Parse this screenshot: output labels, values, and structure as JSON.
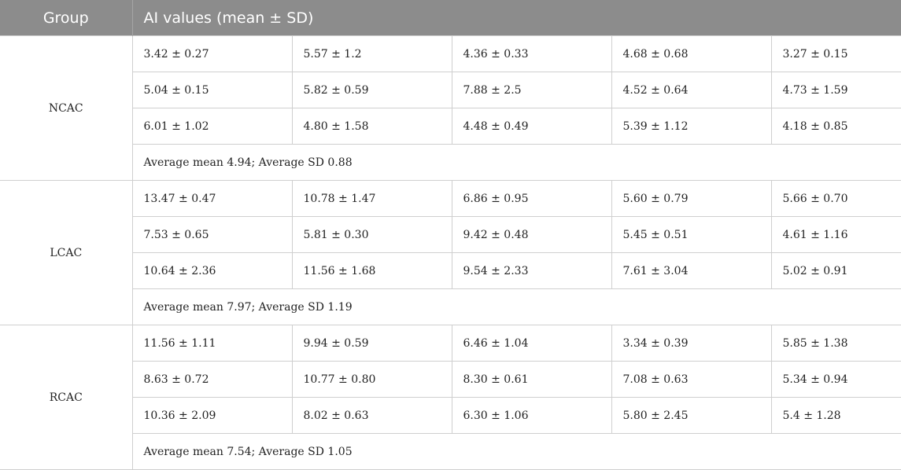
{
  "table": {
    "headers": {
      "group": "Group",
      "values": "AI values (mean ± SD)"
    },
    "groups": [
      {
        "name": "NCAC",
        "rows": [
          [
            "3.42 ± 0.27",
            "5.57 ± 1.2",
            "4.36 ± 0.33",
            "4.68 ± 0.68",
            "3.27 ± 0.15"
          ],
          [
            "5.04 ± 0.15",
            "5.82 ± 0.59",
            "7.88 ± 2.5",
            "4.52 ± 0.64",
            "4.73 ± 1.59"
          ],
          [
            "6.01 ± 1.02",
            "4.80 ± 1.58",
            "4.48 ± 0.49",
            "5.39 ± 1.12",
            "4.18 ± 0.85"
          ]
        ],
        "summary": "Average mean 4.94; Average SD 0.88"
      },
      {
        "name": "LCAC",
        "rows": [
          [
            "13.47 ± 0.47",
            "10.78 ± 1.47",
            "6.86 ± 0.95",
            "5.60 ± 0.79",
            "5.66 ± 0.70"
          ],
          [
            "7.53 ± 0.65",
            "5.81 ± 0.30",
            "9.42 ± 0.48",
            "5.45 ± 0.51",
            "4.61 ± 1.16"
          ],
          [
            "10.64 ± 2.36",
            "11.56 ± 1.68",
            "9.54 ± 2.33",
            "7.61 ± 3.04",
            "5.02 ± 0.91"
          ]
        ],
        "summary": "Average mean 7.97; Average SD 1.19"
      },
      {
        "name": "RCAC",
        "rows": [
          [
            "11.56 ± 1.11",
            "9.94 ± 0.59",
            "6.46 ± 1.04",
            "3.34 ± 0.39",
            "5.85 ± 1.38"
          ],
          [
            "8.63 ± 0.72",
            "10.77 ± 0.80",
            "8.30 ± 0.61",
            "7.08 ± 0.63",
            "5.34 ± 0.94"
          ],
          [
            "10.36 ± 2.09",
            "8.02 ± 0.63",
            "6.30 ± 1.06",
            "5.80 ± 2.45",
            "5.4 ± 1.28"
          ]
        ],
        "summary": "Average mean 7.54; Average SD 1.05"
      }
    ]
  }
}
